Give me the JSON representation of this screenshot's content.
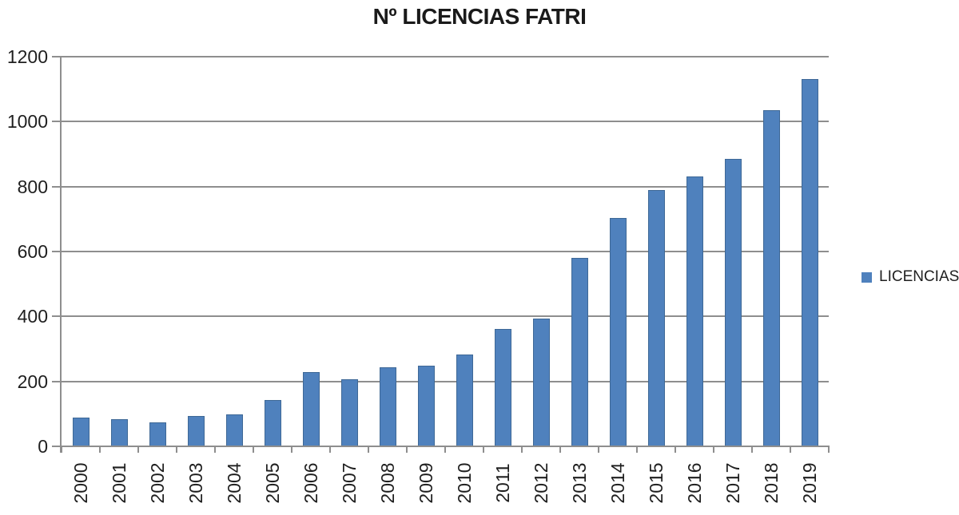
{
  "chart_data": {
    "type": "bar",
    "title": "Nº LICENCIAS FATRI",
    "xlabel": "",
    "ylabel": "",
    "categories": [
      "2000",
      "2001",
      "2002",
      "2003",
      "2004",
      "2005",
      "2006",
      "2007",
      "2008",
      "2009",
      "2010",
      "2011",
      "2012",
      "2013",
      "2014",
      "2015",
      "2016",
      "2017",
      "2018",
      "2019"
    ],
    "series": [
      {
        "name": "LICENCIAS",
        "values": [
          87,
          80,
          72,
          91,
          96,
          141,
          226,
          203,
          240,
          247,
          280,
          359,
          391,
          578,
          701,
          788,
          828,
          882,
          1033,
          1128
        ]
      }
    ],
    "yticks": [
      0,
      200,
      400,
      600,
      800,
      1000,
      1200
    ],
    "ylim": [
      0,
      1200
    ],
    "grid": true,
    "legend_position": "right",
    "x_tick_rotation": 90,
    "colors": {
      "bar_fill": "#4f81bd",
      "bar_border": "#3e6896",
      "gridline": "#8e8e8e",
      "axis": "#8e8e8e",
      "text": "#1f1f1f",
      "title_text": "#1a1a1a",
      "background": "#ffffff"
    }
  }
}
